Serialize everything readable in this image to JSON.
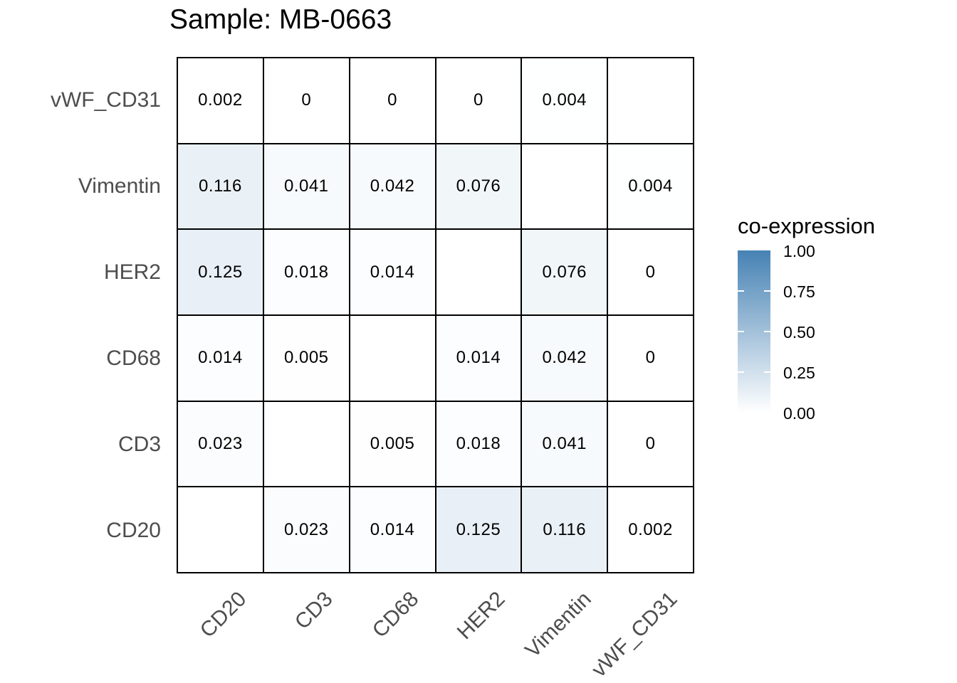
{
  "title": "Sample: MB-0663",
  "legend": {
    "title": "co-expression",
    "ticks": [
      "1.00",
      "0.75",
      "0.50",
      "0.25",
      "0.00"
    ],
    "high_color": "#4682B4",
    "low_color": "#FFFFFF"
  },
  "chart_data": {
    "type": "heatmap",
    "title": "Sample: MB-0663",
    "xlabel": "",
    "ylabel": "",
    "legend_title": "co-expression",
    "colorbar_ticks": [
      1.0,
      0.75,
      0.5,
      0.25,
      0.0
    ],
    "fill_scale": {
      "low": "#FFFFFF",
      "high": "#4682B4",
      "domain": [
        0,
        1
      ]
    },
    "grid_color": "#000000",
    "axis_label_color": "#4D4D4D",
    "x_categories": [
      "CD20",
      "CD3",
      "CD68",
      "HER2",
      "Vimentin",
      "vWF_CD31"
    ],
    "y_categories_top_to_bottom": [
      "vWF_CD31",
      "Vimentin",
      "HER2",
      "CD68",
      "CD3",
      "CD20"
    ],
    "values": [
      [
        0.002,
        0,
        0,
        0,
        0.004,
        null
      ],
      [
        0.116,
        0.041,
        0.042,
        0.076,
        null,
        0.004
      ],
      [
        0.125,
        0.018,
        0.014,
        null,
        0.076,
        0
      ],
      [
        0.014,
        0.005,
        null,
        0.014,
        0.042,
        0
      ],
      [
        0.023,
        null,
        0.005,
        0.018,
        0.041,
        0
      ],
      [
        null,
        0.023,
        0.014,
        0.125,
        0.116,
        0.002
      ]
    ],
    "labels": [
      [
        "0.002",
        "0",
        "0",
        "0",
        "0.004",
        ""
      ],
      [
        "0.116",
        "0.041",
        "0.042",
        "0.076",
        "",
        "0.004"
      ],
      [
        "0.125",
        "0.018",
        "0.014",
        "",
        "0.076",
        "0"
      ],
      [
        "0.014",
        "0.005",
        "",
        "0.014",
        "0.042",
        "0"
      ],
      [
        "0.023",
        "",
        "0.005",
        "0.018",
        "0.041",
        "0"
      ],
      [
        "",
        "0.023",
        "0.014",
        "0.125",
        "0.116",
        "0.002"
      ]
    ]
  }
}
